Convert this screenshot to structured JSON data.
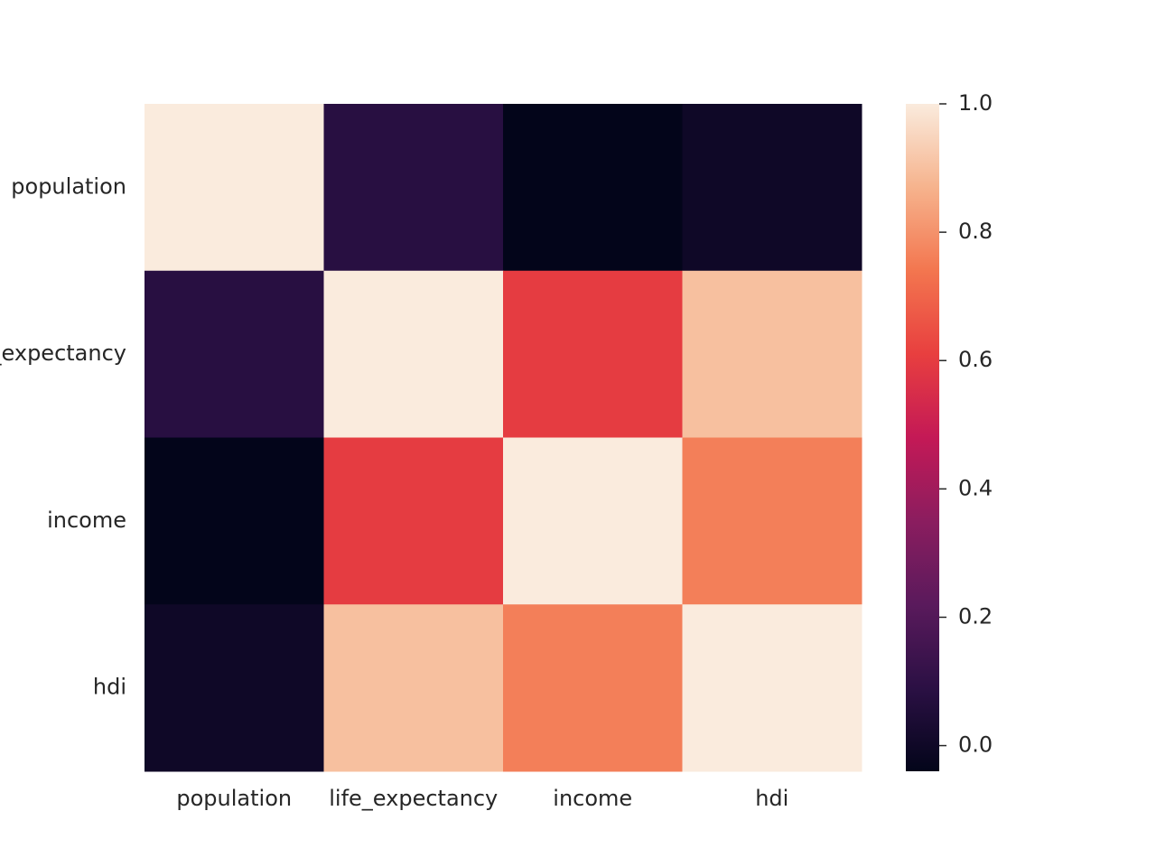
{
  "chart_data": {
    "type": "heatmap",
    "rows": [
      "population",
      "life_expectancy",
      "income",
      "hdi"
    ],
    "columns": [
      "population",
      "life_expectancy",
      "income",
      "hdi"
    ],
    "values": [
      [
        1.0,
        0.08,
        -0.04,
        0.0
      ],
      [
        0.08,
        1.0,
        0.6,
        0.9
      ],
      [
        -0.04,
        0.6,
        1.0,
        0.76
      ],
      [
        0.0,
        0.9,
        0.76,
        1.0
      ]
    ],
    "colorbar": {
      "min": -0.04,
      "max": 1.0,
      "ticks": [
        1.0,
        0.8,
        0.6,
        0.4,
        0.2,
        0.0
      ],
      "tick_labels": [
        "1.0",
        "0.8",
        "0.6",
        "0.4",
        "0.2",
        "0.0"
      ]
    },
    "colormap": [
      "#03051a",
      "#2b1044",
      "#5a1a5c",
      "#8b1d5f",
      "#c41956",
      "#e83f3f",
      "#f3764f",
      "#f6b38d",
      "#faebdd"
    ],
    "grid": false,
    "legend": "colorbar right"
  }
}
